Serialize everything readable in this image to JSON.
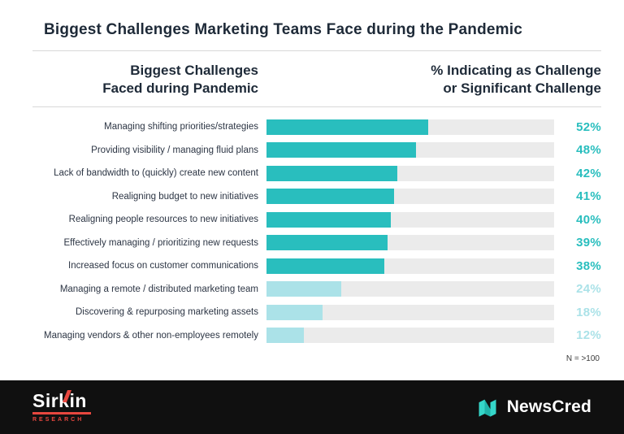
{
  "title": "Biggest Challenges Marketing Teams Face during the Pandemic",
  "header": {
    "left_line1": "Biggest Challenges",
    "left_line2": "Faced during Pandemic",
    "right_line1": "% Indicating as Challenge",
    "right_line2": "or Significant Challenge"
  },
  "chart_data": {
    "type": "bar",
    "orientation": "horizontal",
    "title": "Biggest Challenges Marketing Teams Face during the Pandemic",
    "xlim": [
      0,
      100
    ],
    "categories": [
      "Managing shifting priorities/strategies",
      "Providing visibility / managing fluid plans",
      "Lack of bandwidth to (quickly) create new content",
      "Realigning budget to new initiatives",
      "Realigning people resources to new initiatives",
      "Effectively managing / prioritizing new requests",
      "Increased focus on customer communications",
      "Managing a remote / distributed marketing team",
      "Discovering & repurposing marketing assets",
      "Managing vendors & other non-employees remotely"
    ],
    "values": [
      52,
      48,
      42,
      41,
      40,
      39,
      38,
      24,
      18,
      12
    ],
    "value_labels": [
      "52%",
      "48%",
      "42%",
      "41%",
      "40%",
      "39%",
      "38%",
      "24%",
      "18%",
      "12%"
    ],
    "emphasis": [
      true,
      true,
      true,
      true,
      true,
      true,
      true,
      false,
      false,
      false
    ],
    "note": "N = >100"
  },
  "note": "N = >100",
  "footer": {
    "sirkin_name": "Sirkin",
    "sirkin_sub": "RESEARCH",
    "newscred": "NewsCred"
  },
  "colors": {
    "bar_strong": "#29bebe",
    "bar_light": "#abe2e8",
    "pct_strong": "#29bebe",
    "pct_light": "#abe2e8",
    "track": "#ebebeb",
    "accent_red": "#e8473f",
    "title_text": "#1e2a38",
    "footer_bg": "#101010"
  }
}
